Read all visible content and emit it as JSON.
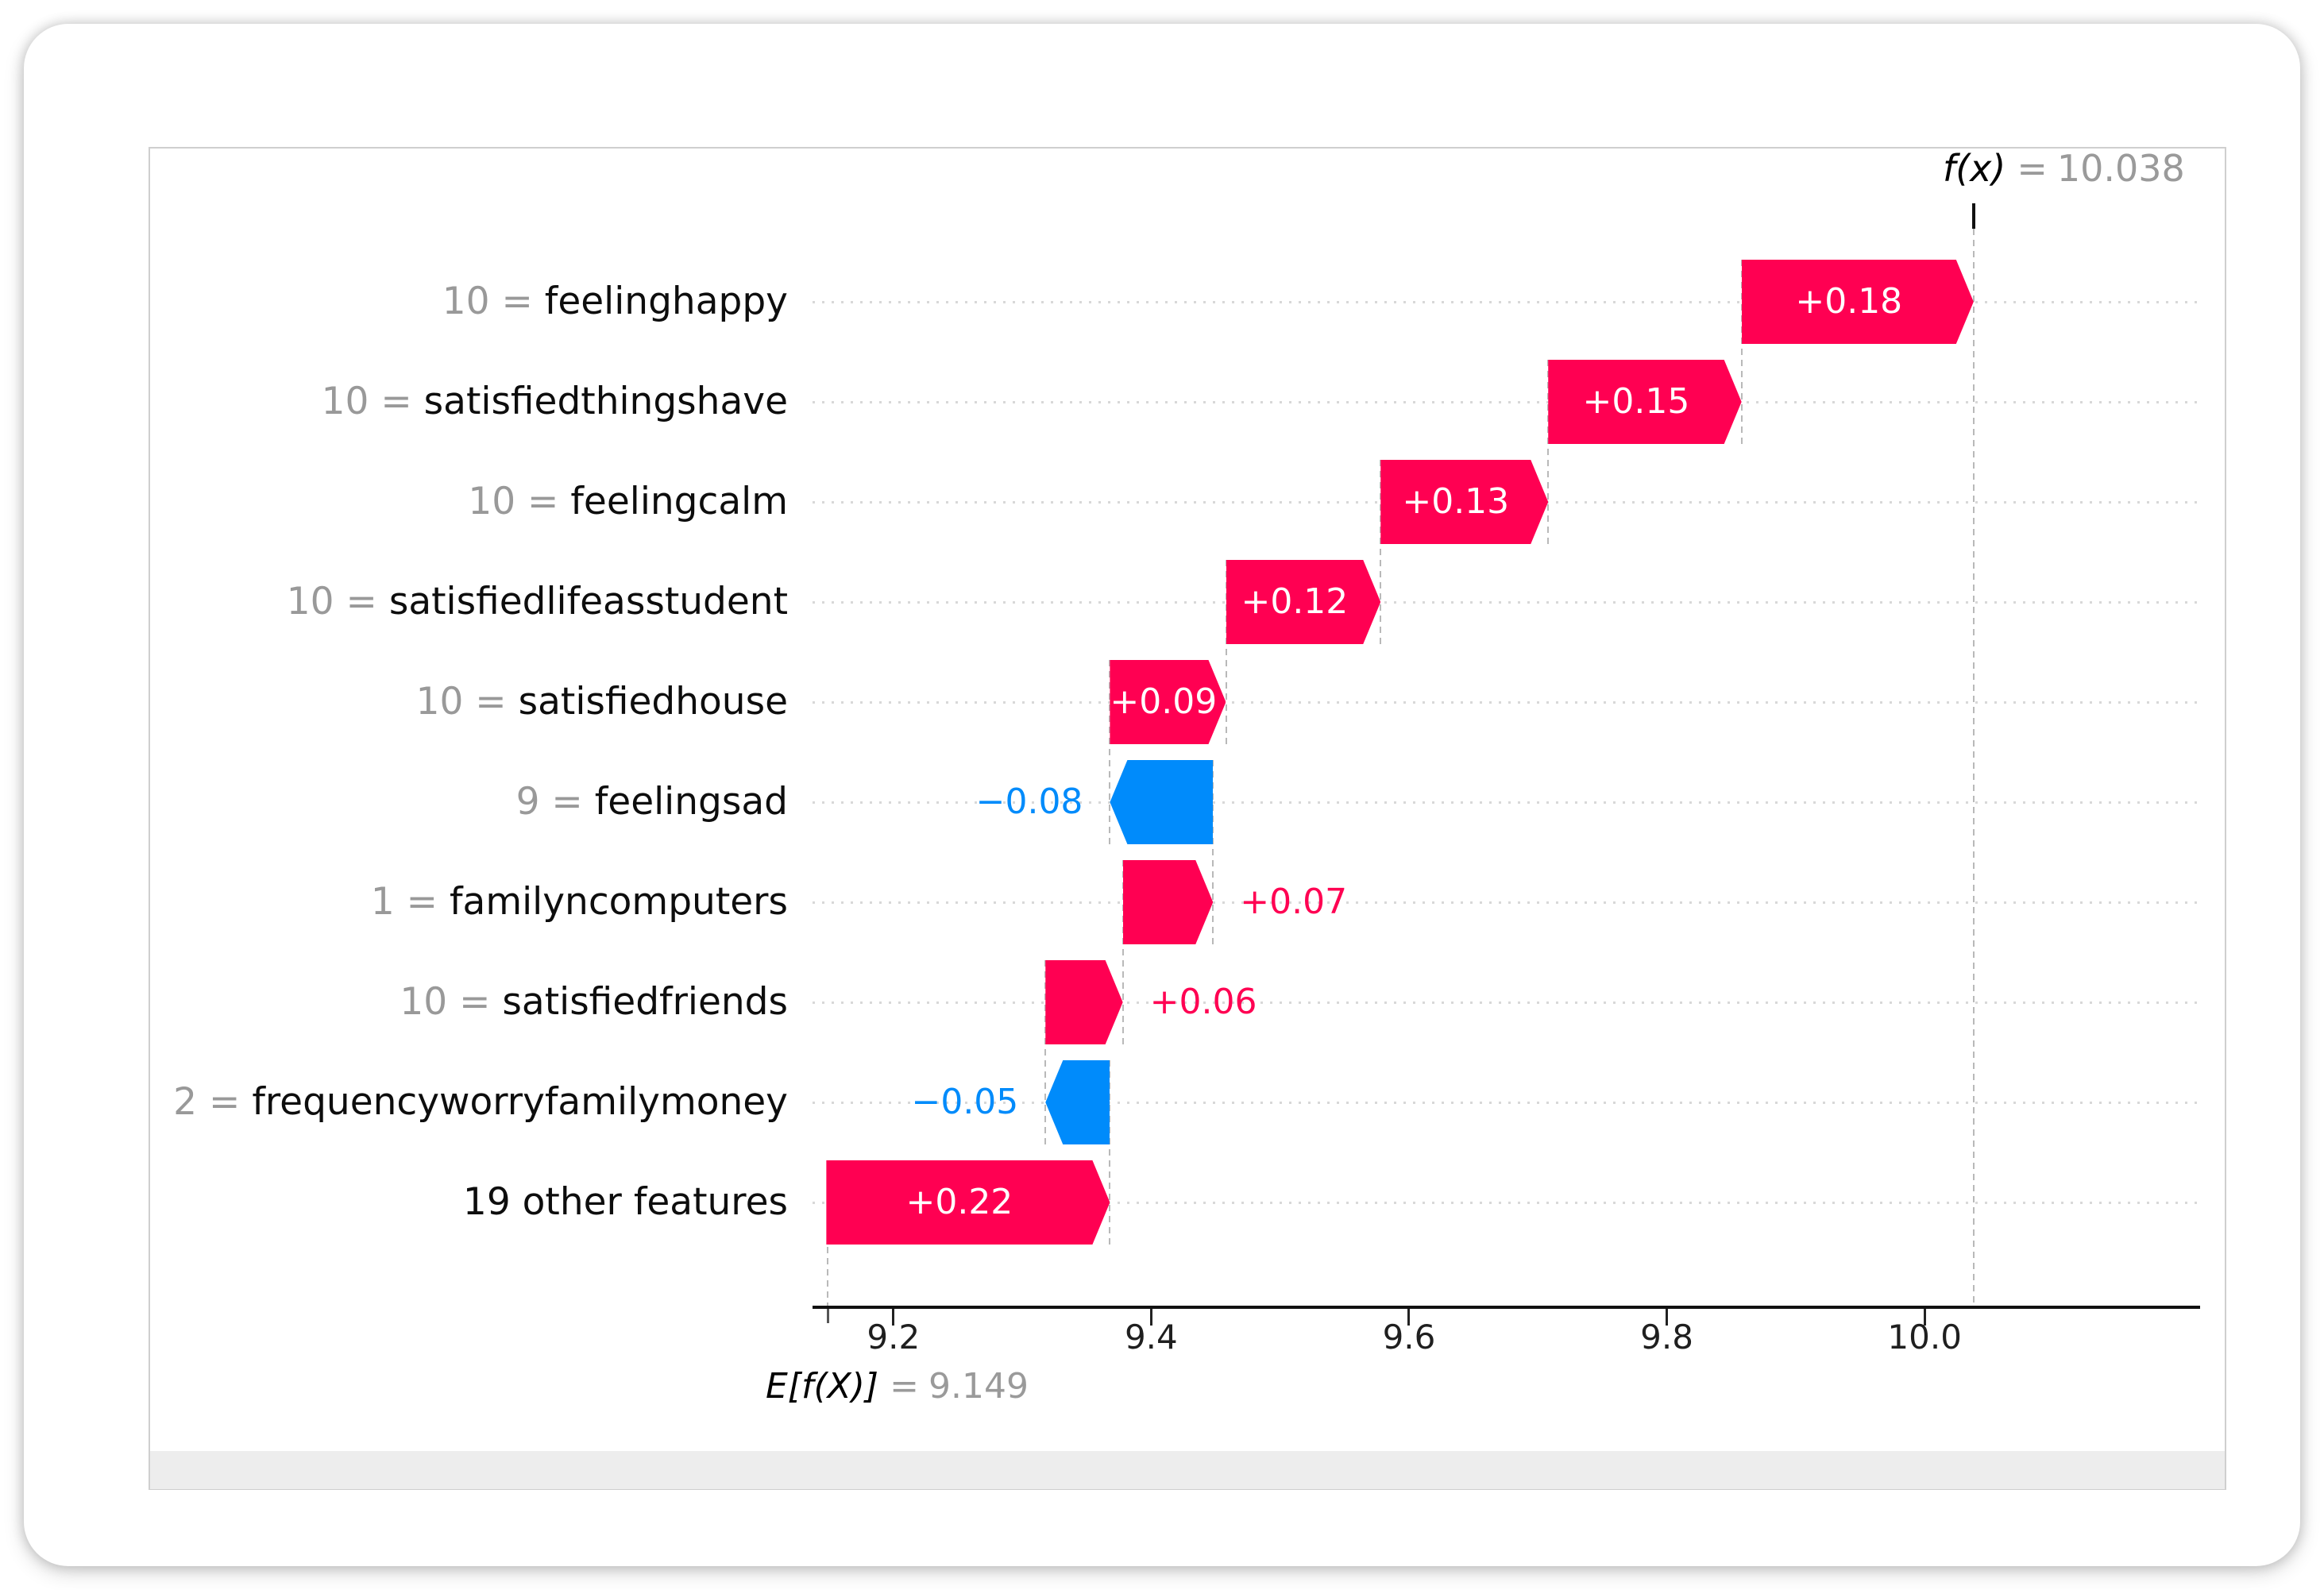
{
  "figure": {
    "title": {
      "name": "f(x)",
      "eq": "=",
      "value": "10.038"
    },
    "base": {
      "name": "E[f(X)]",
      "eq": "=",
      "value": "9.149"
    }
  },
  "chart_data": {
    "type": "waterfall",
    "title": "f(x) = 10.038",
    "fx": 10.038,
    "base_value": 9.149,
    "base_label": "E[f(X)] = 9.149",
    "xlabel": "",
    "ylabel": "",
    "xlim": [
      9.137,
      10.215
    ],
    "xticks": [
      9.2,
      9.4,
      9.6,
      9.8,
      10.0
    ],
    "xtick_labels": [
      "9.2",
      "9.4",
      "9.6",
      "9.8",
      "10.0"
    ],
    "grid": "dotted-horizontal-per-row",
    "legend": "none",
    "separator": " = ",
    "colors": {
      "positive": "#ff0052",
      "negative": "#008bfb",
      "connector": "#bbbbbb",
      "muted_text": "#999999",
      "text": "#0d0d0d",
      "scroll_track": "#ededed"
    },
    "rows": [
      {
        "feature": "feelinghappy",
        "feature_value": "10",
        "shap": 0.18,
        "label": "+0.18",
        "inside": true
      },
      {
        "feature": "satisfiedthingshave",
        "feature_value": "10",
        "shap": 0.15,
        "label": "+0.15",
        "inside": true
      },
      {
        "feature": "feelingcalm",
        "feature_value": "10",
        "shap": 0.13,
        "label": "+0.13",
        "inside": true
      },
      {
        "feature": "satisfiedlifeasstudent",
        "feature_value": "10",
        "shap": 0.12,
        "label": "+0.12",
        "inside": true
      },
      {
        "feature": "satisfiedhouse",
        "feature_value": "10",
        "shap": 0.09,
        "label": "+0.09",
        "inside": true
      },
      {
        "feature": "feelingsad",
        "feature_value": "9",
        "shap": -0.08,
        "label": "−0.08",
        "inside": false
      },
      {
        "feature": "familyncomputers",
        "feature_value": "1",
        "shap": 0.07,
        "label": "+0.07",
        "inside": false
      },
      {
        "feature": "satisfiedfriends",
        "feature_value": "10",
        "shap": 0.06,
        "label": "+0.06",
        "inside": false
      },
      {
        "feature": "frequencyworryfamilymoney",
        "feature_value": "2",
        "shap": -0.05,
        "label": "−0.05",
        "inside": false
      },
      {
        "feature": "19 other features",
        "feature_value": null,
        "shap": 0.22,
        "label": "+0.22",
        "inside": true
      }
    ]
  }
}
